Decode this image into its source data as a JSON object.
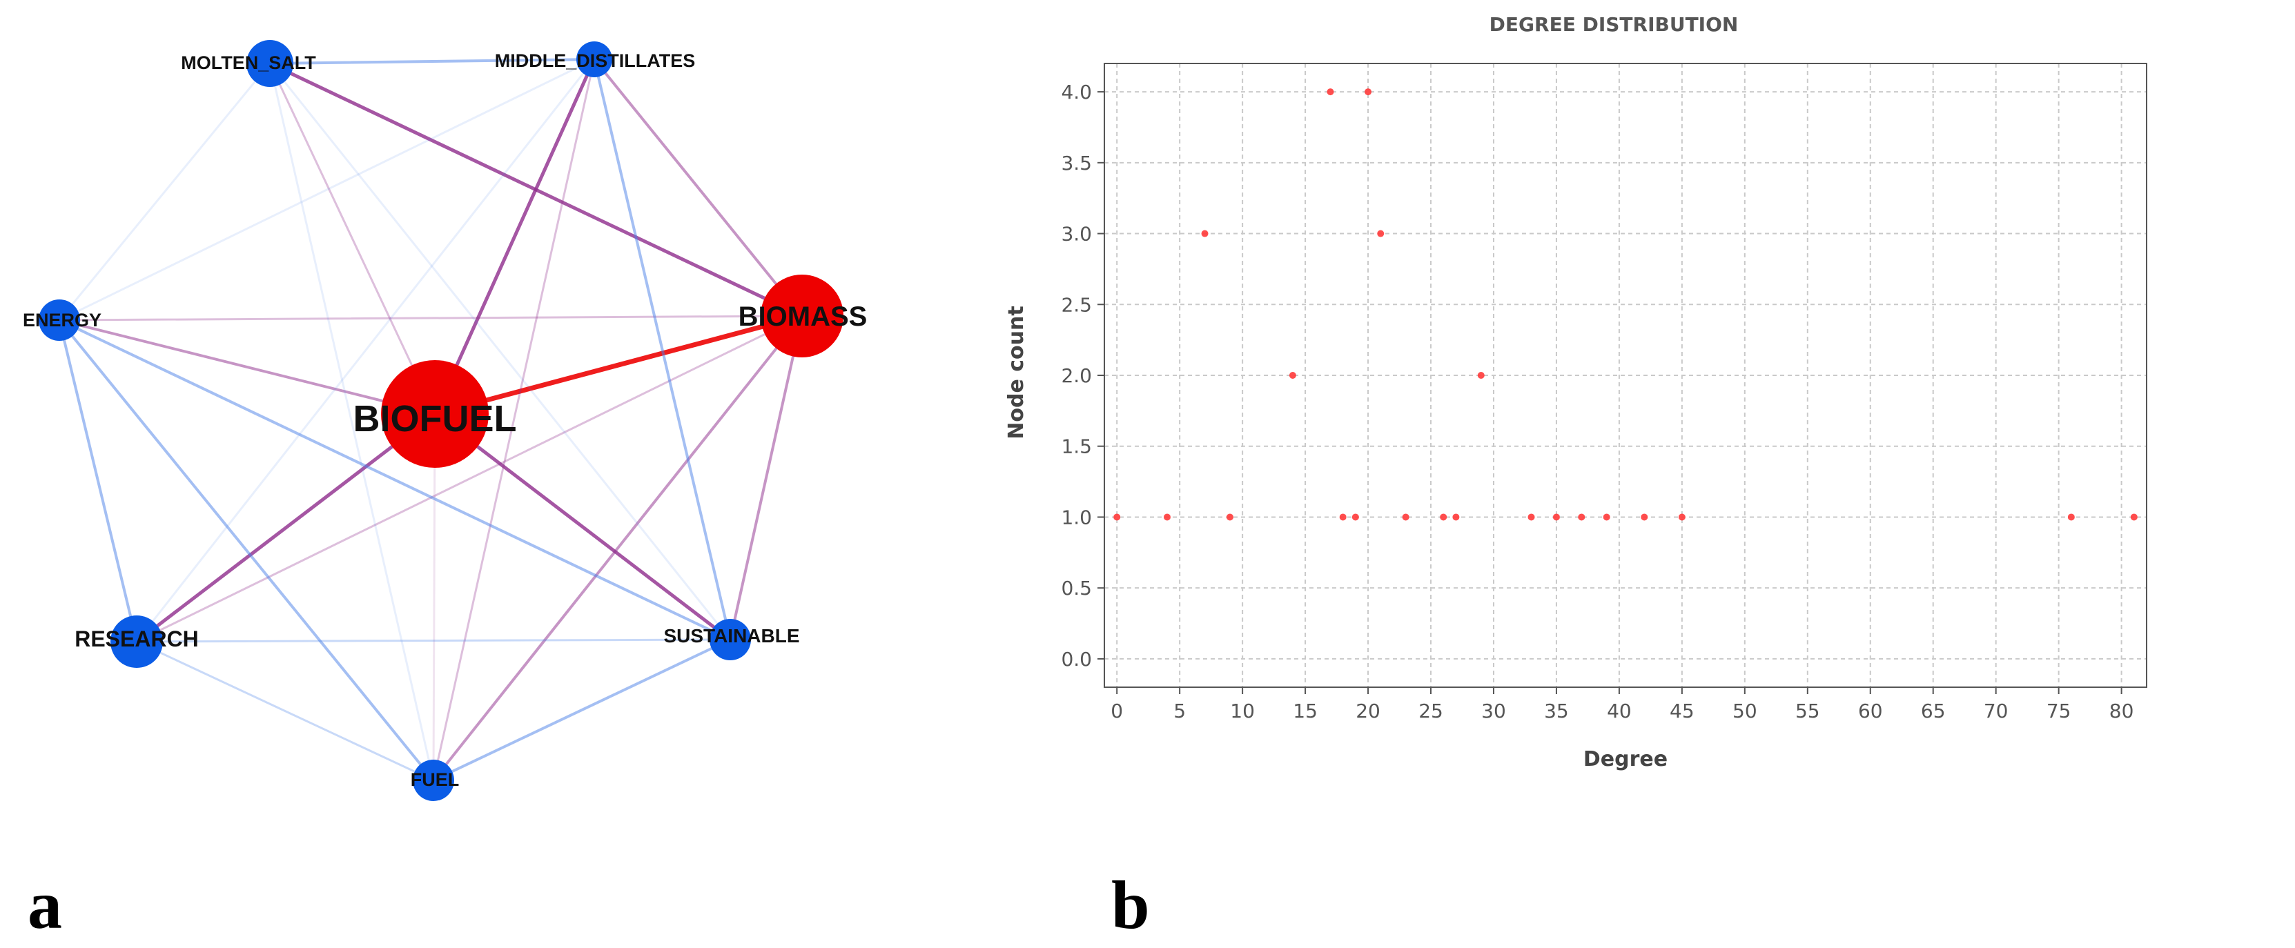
{
  "panels": {
    "left_label": "a",
    "right_label": "b"
  },
  "colors": {
    "primary_node": "#ee0000",
    "secondary_node": "#0b5ce6",
    "primary_edge": "#ee1111",
    "purple_edge": "#8e2c8c",
    "blue_edge": "#4a80e8",
    "point": "#ff3a3a",
    "grid": "#c9c9c9"
  },
  "network": {
    "nodes": [
      {
        "id": "BIOFUEL",
        "label": "BIOFUEL",
        "group": "primary",
        "size": "large"
      },
      {
        "id": "BIOMASS",
        "label": "BIOMASS",
        "group": "primary",
        "size": "medium"
      },
      {
        "id": "MOLTEN_SALT",
        "label": "MOLTEN_SALT",
        "group": "secondary",
        "size": "small"
      },
      {
        "id": "MIDDLE_DISTILLATES",
        "label": "MIDDLE_DISTILLATES",
        "group": "secondary",
        "size": "small"
      },
      {
        "id": "ENERGY",
        "label": "ENERGY",
        "group": "secondary",
        "size": "small"
      },
      {
        "id": "RESEARCH",
        "label": "RESEARCH",
        "group": "secondary",
        "size": "small"
      },
      {
        "id": "SUSTAINABLE",
        "label": "SUSTAINABLE",
        "group": "secondary",
        "size": "small"
      },
      {
        "id": "FUEL",
        "label": "FUEL",
        "group": "secondary",
        "size": "small"
      }
    ],
    "edges": [
      {
        "source": "BIOFUEL",
        "target": "BIOMASS",
        "color": "red",
        "strength": "strong"
      },
      {
        "source": "MOLTEN_SALT",
        "target": "BIOMASS",
        "color": "purple",
        "strength": "strong"
      },
      {
        "source": "MIDDLE_DISTILLATES",
        "target": "BIOFUEL",
        "color": "purple",
        "strength": "strong"
      },
      {
        "source": "BIOFUEL",
        "target": "RESEARCH",
        "color": "purple",
        "strength": "strong"
      },
      {
        "source": "BIOFUEL",
        "target": "SUSTAINABLE",
        "color": "purple",
        "strength": "strong"
      },
      {
        "source": "ENERGY",
        "target": "BIOFUEL",
        "color": "purple",
        "strength": "medium"
      },
      {
        "source": "MIDDLE_DISTILLATES",
        "target": "BIOMASS",
        "color": "purple",
        "strength": "medium"
      },
      {
        "source": "BIOMASS",
        "target": "SUSTAINABLE",
        "color": "purple",
        "strength": "medium"
      },
      {
        "source": "BIOMASS",
        "target": "FUEL",
        "color": "purple",
        "strength": "medium"
      },
      {
        "source": "MOLTEN_SALT",
        "target": "BIOFUEL",
        "color": "purple",
        "strength": "weak"
      },
      {
        "source": "ENERGY",
        "target": "BIOMASS",
        "color": "purple",
        "strength": "weak"
      },
      {
        "source": "BIOMASS",
        "target": "RESEARCH",
        "color": "purple",
        "strength": "weak"
      },
      {
        "source": "MIDDLE_DISTILLATES",
        "target": "FUEL",
        "color": "purple",
        "strength": "weak"
      },
      {
        "source": "BIOFUEL",
        "target": "FUEL",
        "color": "purple",
        "strength": "faint"
      },
      {
        "source": "MOLTEN_SALT",
        "target": "MIDDLE_DISTILLATES",
        "color": "blue",
        "strength": "medium"
      },
      {
        "source": "MIDDLE_DISTILLATES",
        "target": "SUSTAINABLE",
        "color": "blue",
        "strength": "medium"
      },
      {
        "source": "ENERGY",
        "target": "RESEARCH",
        "color": "blue",
        "strength": "medium"
      },
      {
        "source": "ENERGY",
        "target": "SUSTAINABLE",
        "color": "blue",
        "strength": "medium"
      },
      {
        "source": "ENERGY",
        "target": "FUEL",
        "color": "blue",
        "strength": "medium"
      },
      {
        "source": "RESEARCH",
        "target": "SUSTAINABLE",
        "color": "blue",
        "strength": "weak"
      },
      {
        "source": "RESEARCH",
        "target": "FUEL",
        "color": "blue",
        "strength": "weak"
      },
      {
        "source": "SUSTAINABLE",
        "target": "FUEL",
        "color": "blue",
        "strength": "medium"
      },
      {
        "source": "MIDDLE_DISTILLATES",
        "target": "RESEARCH",
        "color": "blue",
        "strength": "faint"
      },
      {
        "source": "MIDDLE_DISTILLATES",
        "target": "ENERGY",
        "color": "blue",
        "strength": "faint"
      },
      {
        "source": "MOLTEN_SALT",
        "target": "ENERGY",
        "color": "blue",
        "strength": "faint"
      },
      {
        "source": "MOLTEN_SALT",
        "target": "SUSTAINABLE",
        "color": "blue",
        "strength": "faint"
      },
      {
        "source": "MOLTEN_SALT",
        "target": "FUEL",
        "color": "blue",
        "strength": "faint"
      }
    ]
  },
  "chart_data": {
    "type": "scatter",
    "title": "DEGREE DISTRIBUTION",
    "xlabel": "Degree",
    "ylabel": "Node  count",
    "xlim": [
      -1,
      82
    ],
    "ylim": [
      -0.2,
      4.2
    ],
    "xticks": [
      0,
      5,
      10,
      15,
      20,
      25,
      30,
      35,
      40,
      45,
      50,
      55,
      60,
      65,
      70,
      75,
      80
    ],
    "yticks": [
      0.0,
      0.5,
      1.0,
      1.5,
      2.0,
      2.5,
      3.0,
      3.5,
      4.0
    ],
    "grid": true,
    "series": [
      {
        "name": "Degree distribution",
        "points": [
          [
            0,
            1
          ],
          [
            4,
            1
          ],
          [
            7,
            3
          ],
          [
            9,
            1
          ],
          [
            14,
            2
          ],
          [
            17,
            4
          ],
          [
            18,
            1
          ],
          [
            19,
            1
          ],
          [
            20,
            4
          ],
          [
            21,
            3
          ],
          [
            23,
            1
          ],
          [
            26,
            1
          ],
          [
            27,
            1
          ],
          [
            29,
            2
          ],
          [
            33,
            1
          ],
          [
            35,
            1
          ],
          [
            37,
            1
          ],
          [
            39,
            1
          ],
          [
            42,
            1
          ],
          [
            45,
            1
          ],
          [
            76,
            1
          ],
          [
            81,
            1
          ]
        ]
      }
    ]
  }
}
